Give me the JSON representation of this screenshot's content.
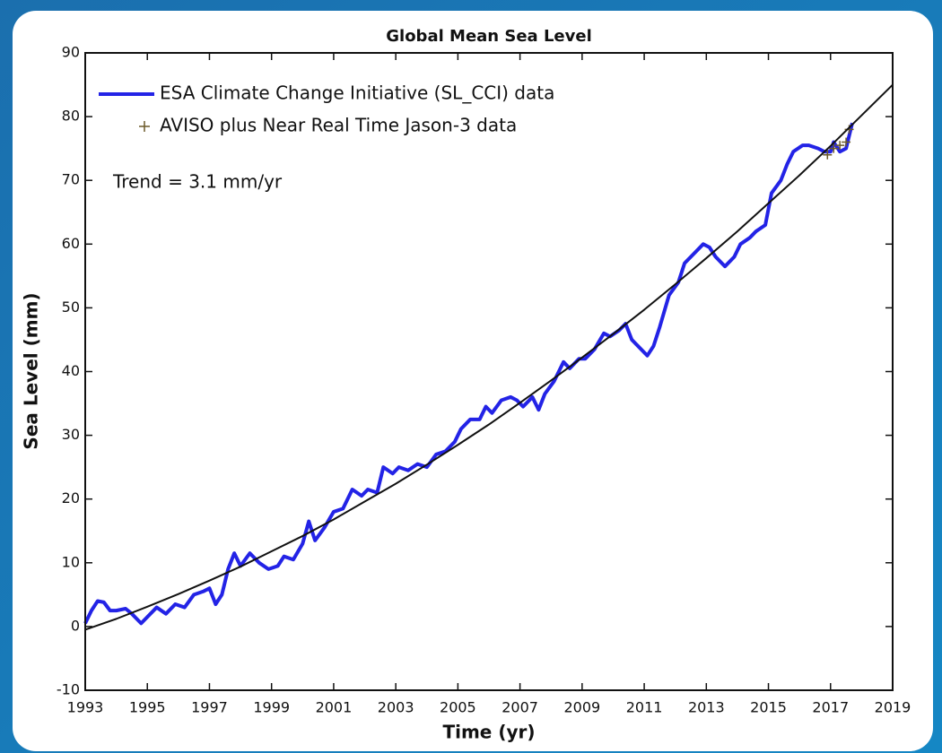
{
  "chart_data": {
    "type": "line",
    "title": "Global Mean Sea Level",
    "xlabel": "Time (yr)",
    "ylabel": "Sea Level (mm)",
    "annotation": "Trend = 3.1 mm/yr",
    "legend": "upper left",
    "xlim": [
      1993,
      2019
    ],
    "xticks": [
      1993,
      1995,
      1997,
      1999,
      2001,
      2003,
      2005,
      2007,
      2009,
      2011,
      2013,
      2015,
      2017,
      2019
    ],
    "ylim": [
      -10,
      90
    ],
    "yticks": [
      -10,
      0,
      10,
      20,
      30,
      40,
      50,
      60,
      70,
      80,
      90
    ],
    "series": [
      {
        "name": "ESA Climate Change Initiative (SL_CCI) data",
        "color": "#2323e6",
        "marker": "line",
        "x": [
          1993.0,
          1993.2,
          1993.4,
          1993.6,
          1993.8,
          1994.0,
          1994.3,
          1994.5,
          1994.8,
          1995.0,
          1995.3,
          1995.6,
          1995.9,
          1996.2,
          1996.5,
          1996.8,
          1997.0,
          1997.2,
          1997.4,
          1997.6,
          1997.8,
          1998.0,
          1998.3,
          1998.6,
          1998.9,
          1999.2,
          1999.4,
          1999.7,
          2000.0,
          2000.2,
          2000.4,
          2000.7,
          2001.0,
          2001.3,
          2001.6,
          2001.9,
          2002.1,
          2002.4,
          2002.6,
          2002.9,
          2003.1,
          2003.4,
          2003.7,
          2004.0,
          2004.3,
          2004.6,
          2004.9,
          2005.1,
          2005.4,
          2005.7,
          2005.9,
          2006.1,
          2006.4,
          2006.7,
          2006.9,
          2007.1,
          2007.4,
          2007.6,
          2007.8,
          2008.1,
          2008.4,
          2008.6,
          2008.9,
          2009.1,
          2009.4,
          2009.7,
          2009.9,
          2010.2,
          2010.4,
          2010.6,
          2010.8,
          2011.1,
          2011.3,
          2011.5,
          2011.8,
          2012.1,
          2012.3,
          2012.6,
          2012.9,
          2013.1,
          2013.3,
          2013.6,
          2013.9,
          2014.1,
          2014.4,
          2014.6,
          2014.9,
          2015.1,
          2015.4,
          2015.6,
          2015.8,
          2016.1,
          2016.3,
          2016.6,
          2016.8,
          2017.0,
          2017.1,
          2017.3,
          2017.5,
          2017.7
        ],
        "values": [
          0.5,
          2.5,
          4,
          3.8,
          2.5,
          2.5,
          2.8,
          2,
          0.5,
          1.5,
          3,
          2,
          3.5,
          3,
          5,
          5.5,
          6,
          3.5,
          5,
          9,
          11.5,
          9.5,
          11.5,
          10,
          9,
          9.5,
          11,
          10.5,
          13,
          16.5,
          13.5,
          15.5,
          18,
          18.5,
          21.5,
          20.5,
          21.5,
          21,
          25,
          24,
          25,
          24.5,
          25.5,
          25,
          27,
          27.5,
          29,
          31,
          32.5,
          32.5,
          34.5,
          33.5,
          35.5,
          36,
          35.5,
          34.5,
          36,
          34,
          36.5,
          38.5,
          41.5,
          40.5,
          42,
          42,
          43.5,
          46,
          45.5,
          46.5,
          47.5,
          45,
          44,
          42.5,
          44,
          47,
          52,
          54,
          57,
          58.5,
          60,
          59.5,
          58,
          56.5,
          58,
          60,
          61,
          62,
          63,
          68,
          70,
          72.5,
          74.5,
          75.5,
          75.5,
          75,
          74.5,
          74.5,
          76,
          74.5,
          75,
          79
        ]
      },
      {
        "name": "AVISO plus Near Real Time Jason-3 data",
        "color": "#6b5a2a",
        "marker": "+",
        "x": [
          2016.9,
          2017.1,
          2017.3,
          2017.5,
          2017.6
        ],
        "values": [
          74,
          75,
          75.5,
          76,
          78
        ]
      },
      {
        "color": "#111111",
        "marker": "line",
        "x": [
          1993,
          1994,
          1995,
          1996,
          1997,
          1998,
          1999,
          2000,
          2001,
          2002,
          2003,
          2004,
          2005,
          2006,
          2007,
          2008,
          2009,
          2010,
          2011,
          2012,
          2013,
          2014,
          2015,
          2016,
          2017,
          2018,
          2019
        ],
        "values": [
          -0.5,
          1.2,
          3.1,
          5.1,
          7.2,
          9.4,
          11.8,
          14.2,
          16.8,
          19.6,
          22.4,
          25.4,
          28.5,
          31.7,
          35.1,
          38.6,
          42.2,
          45.9,
          49.7,
          53.7,
          57.8,
          62.0,
          66.4,
          70.8,
          75.4,
          80.2,
          85.0
        ]
      }
    ]
  }
}
